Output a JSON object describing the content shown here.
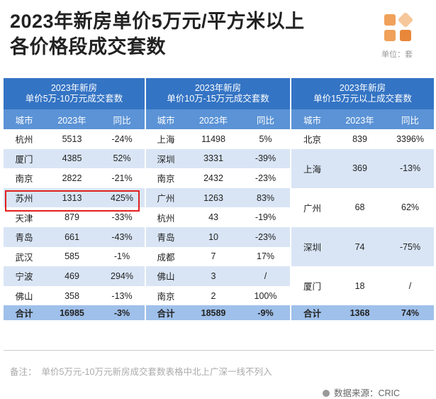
{
  "header": {
    "title_line1": "2023年新房单价5万元/平方米以上",
    "title_line2": "各价格段成交套数",
    "unit": "单位：套"
  },
  "table": {
    "sections": [
      {
        "header_line1": "2023年新房",
        "header_line2": "单价5万-10万元成交套数",
        "columns": [
          "城市",
          "2023年",
          "同比"
        ],
        "rows": [
          [
            "杭州",
            "5513",
            "-24%"
          ],
          [
            "厦门",
            "4385",
            "52%"
          ],
          [
            "南京",
            "2822",
            "-21%"
          ],
          [
            "苏州",
            "1313",
            "425%"
          ],
          [
            "天津",
            "879",
            "-33%"
          ],
          [
            "青岛",
            "661",
            "-43%"
          ],
          [
            "武汉",
            "585",
            "-1%"
          ],
          [
            "宁波",
            "469",
            "294%"
          ],
          [
            "佛山",
            "358",
            "-13%"
          ]
        ],
        "total": [
          "合计",
          "16985",
          "-3%"
        ]
      },
      {
        "header_line1": "2023年新房",
        "header_line2": "单价10万-15万元成交套数",
        "columns": [
          "城市",
          "2023年",
          "同比"
        ],
        "rows": [
          [
            "上海",
            "11498",
            "5%"
          ],
          [
            "深圳",
            "3331",
            "-39%"
          ],
          [
            "南京",
            "2432",
            "-23%"
          ],
          [
            "广州",
            "1263",
            "83%"
          ],
          [
            "杭州",
            "43",
            "-19%"
          ],
          [
            "青岛",
            "10",
            "-23%"
          ],
          [
            "成都",
            "7",
            "17%"
          ],
          [
            "佛山",
            "3",
            "/"
          ],
          [
            "南京",
            "2",
            "100%"
          ]
        ],
        "total": [
          "合计",
          "18589",
          "-9%"
        ]
      },
      {
        "header_line1": "2023年新房",
        "header_line2": "单价15万元以上成交套数",
        "columns": [
          "城市",
          "2023年",
          "同比"
        ],
        "rows": [
          [
            "北京",
            "839",
            "3396%"
          ],
          [
            "上海",
            "369",
            "-13%"
          ],
          [
            "广州",
            "68",
            "62%"
          ],
          [
            "深圳",
            "74",
            "-75%"
          ],
          [
            "厦门",
            "18",
            "/"
          ]
        ],
        "total": [
          "合计",
          "1368",
          "74%"
        ]
      }
    ]
  },
  "footer": {
    "note": "备注：  单价5万元-10万元新房成交套数表格中北上广深一线不列入",
    "source": "数据来源：CRIC"
  }
}
